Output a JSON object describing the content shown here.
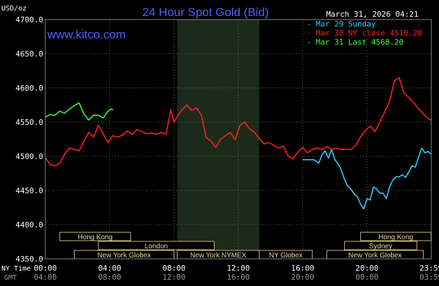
{
  "chart_data": {
    "type": "line",
    "title": "24 Hour Spot Gold (Bid)",
    "watermark": "www.kitco.com",
    "timestamp": "March 31, 2026 04:21",
    "unit_label": "USD/oz",
    "ylim": [
      4350,
      4700
    ],
    "y_ticks": [
      "4700.0",
      "4650.0",
      "4600.0",
      "4550.0",
      "4500.0",
      "4450.0",
      "4400.0",
      "4350.0"
    ],
    "y_tick_values": [
      4700,
      4650,
      4600,
      4550,
      4500,
      4450,
      4400,
      4350
    ],
    "x_hours": [
      0,
      24
    ],
    "ny_time_label": "NY Time",
    "gmt_label": "GMT",
    "ny_ticks": [
      "00:00",
      "04:00",
      "08:00",
      "12:00",
      "16:00",
      "20:00",
      "23:59"
    ],
    "gmt_ticks": [
      "04:00",
      "08:00",
      "12:00",
      "16:00",
      "20:00",
      "00:00",
      "03:59"
    ],
    "tick_hours": [
      0,
      4,
      8,
      12,
      16,
      20,
      23.98
    ],
    "shade_hours": [
      8.2,
      13.3
    ],
    "legend": [
      {
        "label": "Mar 29 Sunday",
        "color": "#33ccff"
      },
      {
        "label": "Mar 30 NY close 4510.20",
        "color": "#ff2020"
      },
      {
        "label": "Mar 31 Last 4568.20",
        "color": "#33ff33"
      }
    ],
    "sessions": [
      {
        "label": "Hong Kong",
        "start": 0.9,
        "end": 5.3,
        "row": 0
      },
      {
        "label": "London",
        "start": 3.3,
        "end": 10.5,
        "row": 1
      },
      {
        "label": "New York Globex",
        "start": 1.8,
        "end": 8.0,
        "row": 2
      },
      {
        "label": "New York NYMEX",
        "start": 8.2,
        "end": 13.3,
        "row": 2
      },
      {
        "label": "NY Globex",
        "start": 13.3,
        "end": 16.6,
        "row": 2
      },
      {
        "label": "Hong Kong",
        "start": 19.6,
        "end": 23.98,
        "row": 0
      },
      {
        "label": "Sydney",
        "start": 18.6,
        "end": 23.1,
        "row": 1
      },
      {
        "label": "New York Globex",
        "start": 17.5,
        "end": 23.5,
        "row": 2
      }
    ],
    "series": [
      {
        "name": "Mar 29 Sunday",
        "color": "#33ccff",
        "x": [
          16.0,
          16.7,
          17.0,
          17.2,
          17.4,
          17.6,
          17.8,
          18.0,
          18.2,
          18.4,
          18.6,
          18.8,
          19.0,
          19.2,
          19.4,
          19.6,
          19.8,
          20.0,
          20.2,
          20.4,
          20.6,
          20.8,
          21.0,
          21.2,
          21.4,
          21.6,
          21.8,
          22.0,
          22.2,
          22.4,
          22.6,
          22.8,
          23.0,
          23.2,
          23.4,
          23.6,
          23.8,
          23.98
        ],
        "y": [
          4495,
          4495,
          4490,
          4502,
          4508,
          4497,
          4510,
          4495,
          4489,
          4480,
          4466,
          4456,
          4452,
          4445,
          4441,
          4430,
          4423,
          4438,
          4436,
          4455,
          4452,
          4446,
          4446,
          4438,
          4455,
          4465,
          4470,
          4470,
          4473,
          4469,
          4477,
          4486,
          4484,
          4498,
          4512,
          4505,
          4507,
          4503
        ]
      },
      {
        "name": "Mar 30 NY close 4510.20",
        "color": "#ff2020",
        "x": [
          0.0,
          0.3,
          0.6,
          0.9,
          1.2,
          1.5,
          1.8,
          2.1,
          2.4,
          2.7,
          3.0,
          3.3,
          3.6,
          3.9,
          4.2,
          4.5,
          4.8,
          5.1,
          5.4,
          5.7,
          6.0,
          6.3,
          6.6,
          6.9,
          7.2,
          7.5,
          7.8,
          8.0,
          8.2,
          8.5,
          8.8,
          9.1,
          9.4,
          9.7,
          10.0,
          10.3,
          10.6,
          10.9,
          11.2,
          11.5,
          11.8,
          12.1,
          12.4,
          12.7,
          13.0,
          13.3,
          13.6,
          13.9,
          14.2,
          14.5,
          14.8,
          15.1,
          15.4,
          15.7,
          16.0,
          16.3,
          16.6,
          16.9,
          17.2,
          17.5,
          17.8,
          18.1,
          18.4,
          18.7,
          19.0,
          19.3,
          19.6,
          19.9,
          20.2,
          20.5,
          20.8,
          21.1,
          21.4,
          21.7,
          22.0,
          22.3,
          22.6,
          22.9,
          23.2,
          23.5,
          23.8,
          23.98
        ],
        "y": [
          4498,
          4488,
          4486,
          4490,
          4503,
          4512,
          4510,
          4508,
          4522,
          4535,
          4528,
          4545,
          4533,
          4520,
          4530,
          4528,
          4531,
          4537,
          4532,
          4539,
          4536,
          4533,
          4534,
          4532,
          4535,
          4532,
          4568,
          4550,
          4558,
          4568,
          4575,
          4567,
          4571,
          4560,
          4528,
          4522,
          4513,
          4525,
          4530,
          4535,
          4524,
          4545,
          4550,
          4540,
          4535,
          4526,
          4518,
          4520,
          4516,
          4512,
          4515,
          4500,
          4496,
          4506,
          4513,
          4505,
          4510,
          4512,
          4510,
          4514,
          4510,
          4512,
          4510,
          4510,
          4510,
          4516,
          4528,
          4538,
          4544,
          4536,
          4550,
          4565,
          4580,
          4610,
          4615,
          4592,
          4586,
          4578,
          4570,
          4562,
          4555,
          4553
        ]
      },
      {
        "name": "Mar 31 Last 4568.20",
        "color": "#33ff33",
        "x": [
          0.0,
          0.3,
          0.6,
          0.9,
          1.2,
          1.5,
          1.8,
          2.1,
          2.4,
          2.7,
          3.0,
          3.3,
          3.6,
          3.9,
          4.1,
          4.22
        ],
        "y": [
          4557,
          4561,
          4560,
          4566,
          4563,
          4569,
          4574,
          4578,
          4562,
          4553,
          4560,
          4560,
          4556,
          4566,
          4569,
          4568
        ]
      }
    ]
  }
}
